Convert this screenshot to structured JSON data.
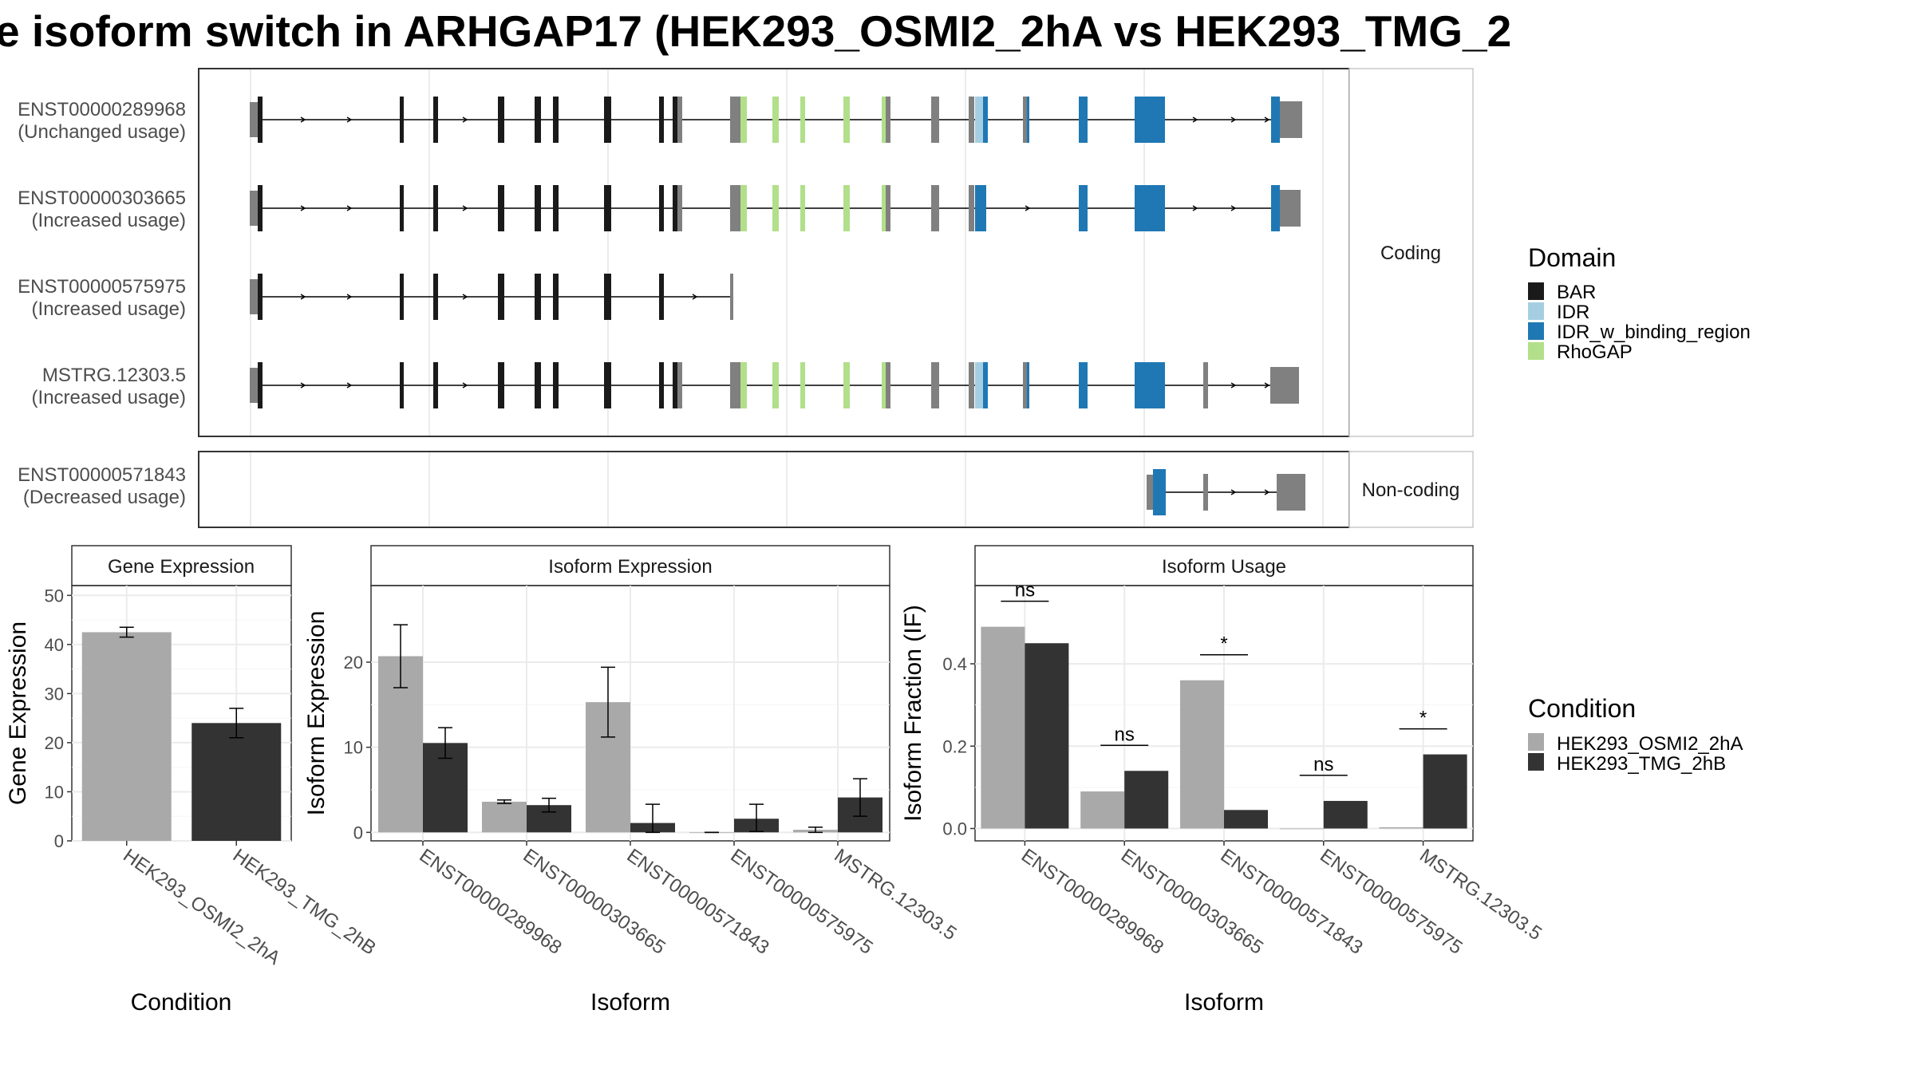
{
  "title": "e isoform switch in ARHGAP17 (HEK293_OSMI2_2hA vs HEK293_TMG_2",
  "colors": {
    "BAR": "#1a1a1a",
    "IDR": "#a6cee3",
    "IDR_w_binding_region": "#1f78b4",
    "RhoGAP": "#b2df8a",
    "utr": "#808080",
    "condition_a": "#a9a9a9",
    "condition_b": "#333333"
  },
  "structure": {
    "coding_strip": "Coding",
    "noncoding_strip": "Non-coding",
    "isoforms": [
      {
        "id": "ENST00000289968",
        "usage": "(Unchanged usage)"
      },
      {
        "id": "ENST00000303665",
        "usage": "(Increased usage)"
      },
      {
        "id": "ENST00000575975",
        "usage": "(Increased usage)"
      },
      {
        "id": "MSTRG.12303.5",
        "usage": "(Increased usage)"
      },
      {
        "id": "ENST00000571843",
        "usage": "(Decreased usage)"
      }
    ]
  },
  "legend": {
    "domain_title": "Domain",
    "domains": [
      "BAR",
      "IDR",
      "IDR_w_binding_region",
      "RhoGAP"
    ],
    "condition_title": "Condition",
    "conditions": [
      "HEK293_OSMI2_2hA",
      "HEK293_TMG_2hB"
    ]
  },
  "chart_data": [
    {
      "type": "bar",
      "title": "Gene Expression",
      "xlabel": "Condition",
      "ylabel": "Gene Expression",
      "categories": [
        "HEK293_OSMI2_2hA",
        "HEK293_TMG_2hB"
      ],
      "values": [
        42.5,
        24.0
      ],
      "errors": [
        [
          41.5,
          43.5
        ],
        [
          21.0,
          27.0
        ]
      ],
      "ylim": [
        0,
        52
      ],
      "yticks": [
        0,
        10,
        20,
        30,
        40,
        50
      ],
      "grid": true
    },
    {
      "type": "bar",
      "title": "Isoform Expression",
      "xlabel": "Isoform",
      "ylabel": "Isoform Expression",
      "categories": [
        "ENST00000289968",
        "ENST00000303665",
        "ENST00000571843",
        "ENST00000575975",
        "MSTRG.12303.5"
      ],
      "series": [
        {
          "name": "HEK293_OSMI2_2hA",
          "values": [
            20.7,
            3.6,
            15.3,
            0.0,
            0.3
          ],
          "errors": [
            [
              17.0,
              24.4
            ],
            [
              3.4,
              3.8
            ],
            [
              11.2,
              19.4
            ],
            [
              0.0,
              0.0
            ],
            [
              0.0,
              0.6
            ]
          ]
        },
        {
          "name": "HEK293_TMG_2hB",
          "values": [
            10.5,
            3.2,
            1.1,
            1.6,
            4.1
          ],
          "errors": [
            [
              8.7,
              12.3
            ],
            [
              2.4,
              4.0
            ],
            [
              0.0,
              3.3
            ],
            [
              0.1,
              3.3
            ],
            [
              1.9,
              6.3
            ]
          ]
        }
      ],
      "ylim": [
        -1,
        29
      ],
      "yticks": [
        0,
        10,
        20
      ],
      "grid": true
    },
    {
      "type": "bar",
      "title": "Isoform Usage",
      "xlabel": "Isoform",
      "ylabel": "Isoform Fraction (IF)",
      "categories": [
        "ENST00000289968",
        "ENST00000303665",
        "ENST00000571843",
        "ENST00000575975",
        "MSTRG.12303.5"
      ],
      "series": [
        {
          "name": "HEK293_OSMI2_2hA",
          "values": [
            0.49,
            0.09,
            0.36,
            0.0,
            0.003
          ]
        },
        {
          "name": "HEK293_TMG_2hB",
          "values": [
            0.45,
            0.14,
            0.045,
            0.067,
            0.18
          ]
        }
      ],
      "significance": [
        "ns",
        "ns",
        "*",
        "ns",
        "*"
      ],
      "ylim": [
        -0.03,
        0.59
      ],
      "yticks": [
        0.0,
        0.2,
        0.4
      ],
      "ytick_labels": [
        "0.0",
        "0.2",
        "0.4"
      ],
      "grid": true
    }
  ]
}
